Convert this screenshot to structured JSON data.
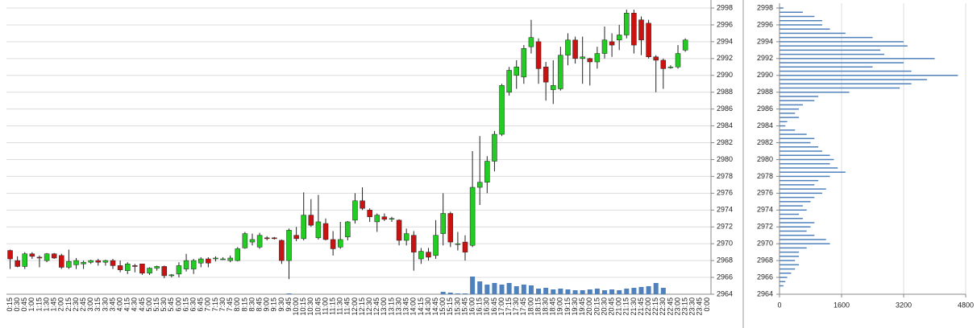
{
  "chart_data": [
    {
      "type": "candlestick",
      "categories": [
        "0:15",
        "0:30",
        "0:45",
        "1:00",
        "1:15",
        "1:30",
        "1:45",
        "2:00",
        "2:15",
        "2:30",
        "2:45",
        "3:00",
        "3:15",
        "3:30",
        "3:45",
        "4:00",
        "4:15",
        "4:30",
        "4:45",
        "5:00",
        "5:15",
        "5:30",
        "5:45",
        "6:00",
        "6:15",
        "6:30",
        "6:45",
        "7:00",
        "7:15",
        "7:30",
        "7:45",
        "8:00",
        "8:15",
        "8:30",
        "8:45",
        "9:00",
        "9:15",
        "9:30",
        "9:45",
        "10:00",
        "10:15",
        "10:30",
        "10:45",
        "11:00",
        "11:15",
        "11:30",
        "11:45",
        "12:00",
        "12:15",
        "12:30",
        "12:45",
        "13:00",
        "13:15",
        "13:30",
        "13:45",
        "14:00",
        "14:15",
        "14:30",
        "14:45",
        "15:00",
        "15:15",
        "15:30",
        "15:45",
        "16:00",
        "16:15",
        "16:30",
        "16:45",
        "17:00",
        "17:15",
        "17:30",
        "17:45",
        "18:00",
        "18:15",
        "18:30",
        "18:45",
        "19:00",
        "19:15",
        "19:30",
        "19:45",
        "20:00",
        "20:15",
        "20:30",
        "20:45",
        "21:00",
        "21:15",
        "21:30",
        "21:45",
        "22:00",
        "22:15",
        "22:30",
        "22:45",
        "23:00",
        "23:15",
        "23:30",
        "23:45",
        "0:00"
      ],
      "open": [
        2969.2,
        2968.0,
        2967.3,
        2968.8,
        2968.4,
        2968.0,
        2968.8,
        2968.6,
        2967.2,
        2967.5,
        2967.6,
        2967.8,
        2968.0,
        2967.8,
        2968.0,
        2967.4,
        2966.8,
        2967.4,
        2967.6,
        2966.5,
        2967.1,
        2967.3,
        2966.2,
        2966.4,
        2967.0,
        2967.0,
        2967.7,
        2968.2,
        2968.2,
        2968.2,
        2968.0,
        2968.0,
        2969.5,
        2970.2,
        2969.6,
        2970.7,
        2970.7,
        2970.4,
        2968.0,
        2971.0,
        2970.6,
        2973.4,
        2970.7,
        2972.4,
        2970.5,
        2969.6,
        2970.8,
        2972.8,
        2975.1,
        2974.0,
        2972.6,
        2973.2,
        2973.0,
        2972.8,
        2970.4,
        2971.0,
        2968.2,
        2969.0,
        2968.6,
        2971.2,
        2973.6,
        2970.0,
        2970.2,
        2969.8,
        2976.7,
        2977.3,
        2979.8,
        2983.0,
        2988.0,
        2990.0,
        2989.8,
        2993.4,
        2994.0,
        2991.0,
        2988.3,
        2988.4,
        2992.4,
        2994.2,
        2992.0,
        2992.0,
        2991.6,
        2992.6,
        2994.0,
        2994.2,
        2994.8,
        2997.4,
        2996.6,
        2996.2,
        2992.2,
        2991.8,
        2991.0,
        2991.0,
        2993.0,
        null,
        null,
        null
      ],
      "high": [
        2969.3,
        2968.5,
        2969.0,
        2969.0,
        2968.6,
        2968.9,
        2968.9,
        2968.8,
        2969.3,
        2968.3,
        2968.0,
        2968.1,
        2968.2,
        2968.1,
        2968.2,
        2968.0,
        2967.8,
        2967.6,
        2967.6,
        2967.2,
        2967.4,
        2967.4,
        2966.4,
        2967.8,
        2968.8,
        2968.2,
        2968.4,
        2968.4,
        2968.5,
        2968.4,
        2968.6,
        2969.6,
        2971.4,
        2971.2,
        2971.3,
        2970.9,
        2970.8,
        2970.5,
        2971.8,
        2972.0,
        2976.1,
        2975.3,
        2975.8,
        2973.0,
        2971.5,
        2972.6,
        2972.7,
        2976.0,
        2976.7,
        2974.2,
        2973.6,
        2973.6,
        2973.2,
        2972.9,
        2971.8,
        2971.5,
        2969.5,
        2969.5,
        2972.8,
        2976.0,
        2973.8,
        2971.4,
        2971.0,
        2981.0,
        2982.8,
        2980.4,
        2983.4,
        2989.0,
        2991.0,
        2991.8,
        2993.6,
        2996.6,
        2994.4,
        2991.6,
        2991.8,
        2993.4,
        2995.0,
        2994.6,
        2994.6,
        2992.1,
        2993.4,
        2995.8,
        2995.0,
        2996.0,
        2997.8,
        2997.8,
        2997.0,
        2996.6,
        2992.4,
        2992.0,
        2991.2,
        2993.6,
        2994.4,
        null,
        null,
        null
      ],
      "low": [
        2967.0,
        2967.2,
        2967.0,
        2968.2,
        2967.2,
        2967.8,
        2968.2,
        2967.0,
        2967.0,
        2967.0,
        2967.0,
        2967.6,
        2967.4,
        2967.4,
        2967.0,
        2966.6,
        2966.4,
        2966.6,
        2966.3,
        2966.3,
        2966.8,
        2965.9,
        2966.0,
        2966.0,
        2966.7,
        2966.4,
        2967.2,
        2967.2,
        2967.9,
        2968.1,
        2967.8,
        2967.9,
        2969.4,
        2969.8,
        2969.4,
        2970.4,
        2970.5,
        2967.6,
        2965.8,
        2970.3,
        2970.4,
        2972.0,
        2970.5,
        2970.4,
        2968.6,
        2969.4,
        2970.4,
        2972.4,
        2974.0,
        2972.6,
        2971.4,
        2972.7,
        2972.6,
        2969.8,
        2969.8,
        2966.8,
        2967.6,
        2968.0,
        2968.2,
        2969.8,
        2969.6,
        2969.2,
        2968.0,
        2969.6,
        2974.6,
        2976.0,
        2978.6,
        2982.8,
        2987.6,
        2988.4,
        2989.0,
        2992.6,
        2989.0,
        2987.0,
        2986.6,
        2988.2,
        2991.2,
        2991.4,
        2989.0,
        2988.8,
        2990.8,
        2992.0,
        2992.2,
        2993.0,
        2994.4,
        2992.6,
        2992.4,
        2992.0,
        2988.0,
        2988.4,
        2990.8,
        2990.8,
        2992.8,
        null,
        null,
        null
      ],
      "close": [
        2968.2,
        2967.3,
        2968.8,
        2968.5,
        2968.3,
        2968.8,
        2968.3,
        2967.2,
        2967.9,
        2968.0,
        2967.8,
        2968.0,
        2967.8,
        2968.0,
        2967.4,
        2966.9,
        2967.6,
        2967.3,
        2966.5,
        2967.1,
        2967.3,
        2966.2,
        2966.3,
        2967.4,
        2968.0,
        2968.0,
        2968.2,
        2967.7,
        2968.3,
        2968.2,
        2968.3,
        2969.4,
        2971.2,
        2970.5,
        2971.0,
        2970.6,
        2970.6,
        2968.0,
        2971.6,
        2970.6,
        2973.4,
        2972.2,
        2972.6,
        2970.5,
        2969.4,
        2970.5,
        2972.6,
        2975.1,
        2974.2,
        2973.2,
        2973.4,
        2972.9,
        2973.0,
        2970.4,
        2971.2,
        2969.0,
        2969.1,
        2968.4,
        2971.0,
        2973.6,
        2970.2,
        2970.0,
        2969.0,
        2976.7,
        2977.3,
        2979.8,
        2983.0,
        2988.8,
        2990.6,
        2991.0,
        2993.2,
        2994.5,
        2990.8,
        2989.2,
        2988.8,
        2992.4,
        2994.2,
        2992.0,
        2992.2,
        2991.6,
        2992.6,
        2994.2,
        2993.6,
        2994.8,
        2997.4,
        2993.6,
        2994.2,
        2992.2,
        2991.8,
        2990.8,
        2991.0,
        2992.6,
        2994.2,
        null,
        null,
        null
      ],
      "volume": [
        0,
        0,
        0,
        0,
        0,
        0,
        0,
        0,
        0,
        0,
        0,
        0,
        0,
        0,
        0,
        0,
        0,
        0,
        0,
        0,
        0,
        0,
        0,
        0,
        0,
        0,
        0,
        0,
        0,
        0,
        0,
        0,
        0,
        0,
        0,
        0,
        0,
        0,
        1,
        0,
        0,
        0,
        0,
        0,
        0,
        0,
        0,
        0,
        0,
        0,
        0,
        0,
        0,
        0,
        0,
        0,
        0,
        0,
        0,
        3,
        2,
        1,
        1,
        22,
        16,
        12,
        14,
        12,
        14,
        10,
        12,
        11,
        7,
        8,
        6,
        7,
        6,
        5,
        5,
        6,
        7,
        5,
        6,
        5,
        7,
        8,
        9,
        10,
        14,
        8,
        null,
        null,
        null,
        null,
        null,
        null
      ],
      "up_color": "#22cc22",
      "down_color": "#cc1111",
      "volume_color": "#4f81bd",
      "ylim": [
        2964,
        2998
      ],
      "yticks": [
        2964,
        2966,
        2968,
        2970,
        2972,
        2974,
        2976,
        2978,
        2980,
        2982,
        2984,
        2986,
        2988,
        2990,
        2992,
        2994,
        2996,
        2998
      ],
      "grid": true
    },
    {
      "type": "hbar",
      "levels": [
        2998,
        2997.5,
        2997,
        2996.5,
        2996,
        2995.5,
        2995,
        2994.5,
        2994,
        2993.5,
        2993,
        2992.5,
        2992,
        2991.5,
        2991,
        2990.5,
        2990,
        2989.5,
        2989,
        2988.5,
        2988,
        2987.5,
        2987,
        2986.5,
        2986,
        2985.5,
        2985,
        2984.5,
        2984,
        2983.5,
        2983,
        2982.5,
        2982,
        2981.5,
        2981,
        2980.5,
        2980,
        2979.5,
        2979,
        2978.5,
        2978,
        2977.5,
        2977,
        2976.5,
        2976,
        2975.5,
        2975,
        2974.5,
        2974,
        2973.5,
        2973,
        2972.5,
        2972,
        2971.5,
        2971,
        2970.5,
        2970,
        2969.5,
        2969,
        2968.5,
        2968,
        2967.5,
        2967,
        2966.5,
        2966,
        2965.5,
        2965
      ],
      "values": [
        100,
        600,
        900,
        1100,
        1100,
        1300,
        1700,
        2400,
        3200,
        3300,
        2600,
        2700,
        4000,
        3200,
        2400,
        3400,
        4600,
        3800,
        3400,
        3100,
        1800,
        1000,
        900,
        600,
        500,
        400,
        500,
        200,
        150,
        400,
        700,
        900,
        800,
        1000,
        1100,
        1300,
        1400,
        1300,
        1500,
        1700,
        1300,
        1000,
        900,
        1200,
        1100,
        900,
        800,
        600,
        700,
        500,
        600,
        900,
        800,
        700,
        900,
        1200,
        1300,
        700,
        500,
        500,
        400,
        500,
        400,
        300,
        200,
        150,
        100
      ],
      "color": "#4f81bd",
      "xlim": [
        0,
        4800
      ],
      "xticks": [
        0,
        1600,
        3200,
        4800
      ],
      "ylim": [
        2964,
        2998
      ],
      "yticks": [
        2964,
        2966,
        2968,
        2970,
        2972,
        2974,
        2976,
        2978,
        2980,
        2982,
        2984,
        2986,
        2988,
        2990,
        2992,
        2994,
        2996,
        2998
      ],
      "grid": true
    }
  ]
}
